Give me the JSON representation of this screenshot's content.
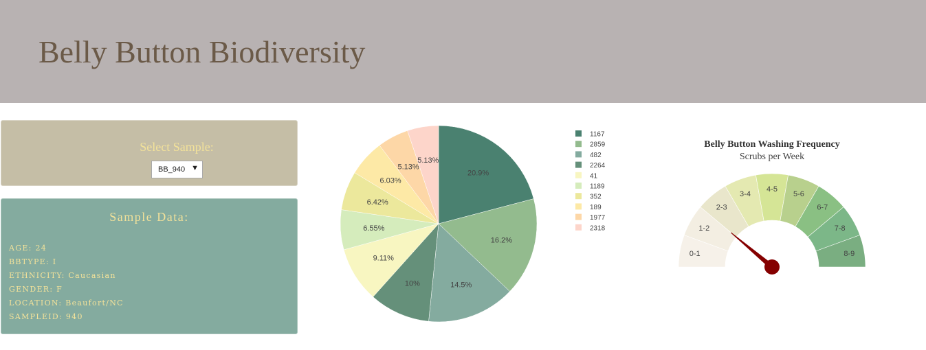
{
  "header": {
    "title": "Belly Button Biodiversity"
  },
  "selector": {
    "label": "Select Sample:",
    "value": "BB_940"
  },
  "metadata": {
    "title": "Sample Data:",
    "rows": [
      "AGE: 24",
      "BBTYPE: I",
      "ETHNICITY: Caucasian",
      "GENDER: F",
      "LOCATION: Beaufort/NC",
      "SAMPLEID: 940"
    ]
  },
  "chart_data": [
    {
      "type": "pie",
      "categories": [
        "1167",
        "2859",
        "482",
        "2264",
        "41",
        "1189",
        "352",
        "189",
        "1977",
        "2318"
      ],
      "values": [
        20.9,
        16.2,
        14.5,
        10,
        9.11,
        6.55,
        6.42,
        6.03,
        5.13,
        5.13
      ],
      "labels": [
        "20.9%",
        "16.2%",
        "14.5%",
        "10%",
        "9.11%",
        "6.55%",
        "6.42%",
        "6.03%",
        "5.13%",
        "5.13%"
      ],
      "colors": [
        "#4a8170",
        "#93bb8e",
        "#84ab9f",
        "#65907a",
        "#f8f6c1",
        "#d5ecbc",
        "#ece89c",
        "#fde9a6",
        "#fdd7a7",
        "#fdd5ca"
      ],
      "legend": "right"
    },
    {
      "type": "gauge",
      "title": "Belly Button Washing Frequency",
      "subtitle": "Scrubs per Week",
      "bands": [
        "0-1",
        "1-2",
        "2-3",
        "3-4",
        "4-5",
        "5-6",
        "6-7",
        "7-8",
        "8-9"
      ],
      "band_colors": [
        "#f6f1e9",
        "#f3eee2",
        "#e9e6cb",
        "#e4e9b1",
        "#d5e596",
        "#b8d08d",
        "#8ac083",
        "#7cb788",
        "#7aae81"
      ],
      "value": 2,
      "max": 9,
      "needle_color": "#850000"
    }
  ]
}
